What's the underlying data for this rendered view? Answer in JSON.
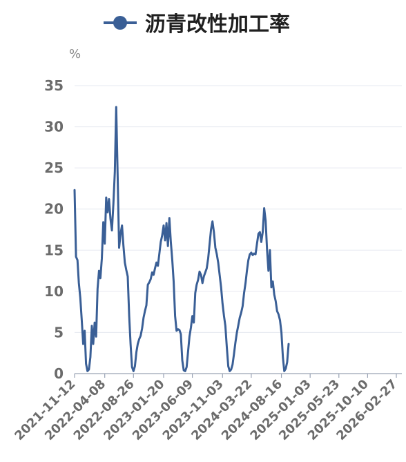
{
  "chart_data": {
    "type": "line",
    "title": "",
    "legend": [
      "沥青改性加工率"
    ],
    "y_unit": "%",
    "ylim": [
      0,
      35
    ],
    "yticks": [
      0,
      5,
      10,
      15,
      20,
      25,
      30,
      35
    ],
    "x_tick_labels": [
      "2021-11-12",
      "2022-04-08",
      "2022-08-26",
      "2023-01-20",
      "2023-06-09",
      "2023-11-03",
      "2024-03-22",
      "2024-08-16",
      "2025-01-03",
      "2025-05-23",
      "2025-10-10",
      "2026-02-27"
    ],
    "grid": "horizontal",
    "color": "#3a5f96",
    "series": [
      {
        "name": "沥青改性加工率",
        "points": [
          [
            "2021-11-12",
            22.3
          ],
          [
            "2021-11-19",
            14.2
          ],
          [
            "2021-11-26",
            13.8
          ],
          [
            "2021-12-03",
            11.0
          ],
          [
            "2021-12-10",
            9.2
          ],
          [
            "2021-12-17",
            6.5
          ],
          [
            "2021-12-24",
            3.6
          ],
          [
            "2021-12-31",
            5.2
          ],
          [
            "2022-01-07",
            1.2
          ],
          [
            "2022-01-14",
            0.3
          ],
          [
            "2022-01-21",
            0.5
          ],
          [
            "2022-01-28",
            2.0
          ],
          [
            "2022-02-04",
            5.8
          ],
          [
            "2022-02-11",
            3.6
          ],
          [
            "2022-02-18",
            6.2
          ],
          [
            "2022-02-25",
            4.5
          ],
          [
            "2022-03-04",
            10.3
          ],
          [
            "2022-03-11",
            12.5
          ],
          [
            "2022-03-18",
            11.6
          ],
          [
            "2022-03-25",
            14.0
          ],
          [
            "2022-04-01",
            18.4
          ],
          [
            "2022-04-08",
            15.8
          ],
          [
            "2022-04-15",
            21.4
          ],
          [
            "2022-04-22",
            19.6
          ],
          [
            "2022-04-29",
            21.2
          ],
          [
            "2022-05-06",
            18.8
          ],
          [
            "2022-05-13",
            17.4
          ],
          [
            "2022-05-20",
            20.6
          ],
          [
            "2022-05-27",
            24.5
          ],
          [
            "2022-06-03",
            32.4
          ],
          [
            "2022-06-10",
            24.0
          ],
          [
            "2022-06-17",
            15.3
          ],
          [
            "2022-06-24",
            17.0
          ],
          [
            "2022-07-01",
            18.0
          ],
          [
            "2022-07-08",
            15.6
          ],
          [
            "2022-07-15",
            13.5
          ],
          [
            "2022-07-22",
            12.6
          ],
          [
            "2022-07-29",
            11.8
          ],
          [
            "2022-08-05",
            7.0
          ],
          [
            "2022-08-12",
            3.6
          ],
          [
            "2022-08-19",
            0.8
          ],
          [
            "2022-08-26",
            0.3
          ],
          [
            "2022-09-02",
            0.9
          ],
          [
            "2022-09-09",
            2.6
          ],
          [
            "2022-09-16",
            3.6
          ],
          [
            "2022-09-23",
            4.2
          ],
          [
            "2022-09-30",
            4.6
          ],
          [
            "2022-10-07",
            5.5
          ],
          [
            "2022-10-14",
            6.8
          ],
          [
            "2022-10-21",
            7.6
          ],
          [
            "2022-10-28",
            8.3
          ],
          [
            "2022-11-04",
            10.8
          ],
          [
            "2022-11-11",
            11.1
          ],
          [
            "2022-11-18",
            11.5
          ],
          [
            "2022-11-25",
            12.3
          ],
          [
            "2022-12-02",
            12.0
          ],
          [
            "2022-12-09",
            12.8
          ],
          [
            "2022-12-16",
            13.5
          ],
          [
            "2022-12-23",
            13.1
          ],
          [
            "2022-12-30",
            14.5
          ],
          [
            "2023-01-06",
            16.0
          ],
          [
            "2023-01-13",
            16.8
          ],
          [
            "2023-01-20",
            18.0
          ],
          [
            "2023-01-27",
            16.2
          ],
          [
            "2023-02-03",
            18.3
          ],
          [
            "2023-02-10",
            15.5
          ],
          [
            "2023-02-17",
            18.9
          ],
          [
            "2023-02-24",
            16.0
          ],
          [
            "2023-03-03",
            13.8
          ],
          [
            "2023-03-10",
            11.2
          ],
          [
            "2023-03-17",
            7.0
          ],
          [
            "2023-03-24",
            5.2
          ],
          [
            "2023-03-31",
            5.4
          ],
          [
            "2023-04-07",
            5.3
          ],
          [
            "2023-04-14",
            4.8
          ],
          [
            "2023-04-21",
            1.6
          ],
          [
            "2023-04-28",
            0.4
          ],
          [
            "2023-05-05",
            0.3
          ],
          [
            "2023-05-12",
            0.8
          ],
          [
            "2023-05-19",
            2.6
          ],
          [
            "2023-05-26",
            4.5
          ],
          [
            "2023-06-02",
            5.6
          ],
          [
            "2023-06-09",
            7.0
          ],
          [
            "2023-06-16",
            6.2
          ],
          [
            "2023-06-23",
            9.8
          ],
          [
            "2023-06-30",
            10.8
          ],
          [
            "2023-07-07",
            11.4
          ],
          [
            "2023-07-14",
            12.4
          ],
          [
            "2023-07-21",
            12.0
          ],
          [
            "2023-07-28",
            11.0
          ],
          [
            "2023-08-04",
            11.8
          ],
          [
            "2023-08-11",
            12.3
          ],
          [
            "2023-08-18",
            12.8
          ],
          [
            "2023-08-25",
            14.0
          ],
          [
            "2023-09-01",
            15.8
          ],
          [
            "2023-09-08",
            17.5
          ],
          [
            "2023-09-15",
            18.5
          ],
          [
            "2023-09-22",
            17.2
          ],
          [
            "2023-09-29",
            15.3
          ],
          [
            "2023-10-06",
            14.5
          ],
          [
            "2023-10-13",
            13.5
          ],
          [
            "2023-10-20",
            12.0
          ],
          [
            "2023-10-27",
            10.5
          ],
          [
            "2023-11-03",
            8.5
          ],
          [
            "2023-11-10",
            7.0
          ],
          [
            "2023-11-17",
            5.8
          ],
          [
            "2023-11-24",
            3.2
          ],
          [
            "2023-12-01",
            0.9
          ],
          [
            "2023-12-08",
            0.3
          ],
          [
            "2023-12-15",
            0.5
          ],
          [
            "2023-12-22",
            1.1
          ],
          [
            "2023-12-29",
            2.4
          ],
          [
            "2024-01-05",
            3.8
          ],
          [
            "2024-01-12",
            5.0
          ],
          [
            "2024-01-19",
            5.9
          ],
          [
            "2024-01-26",
            6.8
          ],
          [
            "2024-02-02",
            7.4
          ],
          [
            "2024-02-09",
            8.2
          ],
          [
            "2024-02-16",
            9.8
          ],
          [
            "2024-02-23",
            11.0
          ],
          [
            "2024-03-01",
            12.5
          ],
          [
            "2024-03-08",
            13.8
          ],
          [
            "2024-03-15",
            14.5
          ],
          [
            "2024-03-22",
            14.7
          ],
          [
            "2024-03-29",
            14.4
          ],
          [
            "2024-04-05",
            14.6
          ],
          [
            "2024-04-12",
            14.5
          ],
          [
            "2024-04-19",
            15.8
          ],
          [
            "2024-04-26",
            17.0
          ],
          [
            "2024-05-03",
            17.2
          ],
          [
            "2024-05-10",
            16.0
          ],
          [
            "2024-05-17",
            17.2
          ],
          [
            "2024-05-24",
            20.1
          ],
          [
            "2024-05-31",
            18.6
          ],
          [
            "2024-06-07",
            15.0
          ],
          [
            "2024-06-14",
            12.5
          ],
          [
            "2024-06-21",
            15.0
          ],
          [
            "2024-06-28",
            10.5
          ],
          [
            "2024-07-05",
            11.2
          ],
          [
            "2024-07-12",
            9.6
          ],
          [
            "2024-07-19",
            8.8
          ],
          [
            "2024-07-26",
            7.6
          ],
          [
            "2024-08-02",
            7.2
          ],
          [
            "2024-08-09",
            6.5
          ],
          [
            "2024-08-16",
            5.0
          ],
          [
            "2024-08-23",
            2.0
          ],
          [
            "2024-08-30",
            0.3
          ],
          [
            "2024-09-06",
            0.6
          ],
          [
            "2024-09-13",
            1.4
          ],
          [
            "2024-09-20",
            3.6
          ]
        ]
      }
    ]
  }
}
